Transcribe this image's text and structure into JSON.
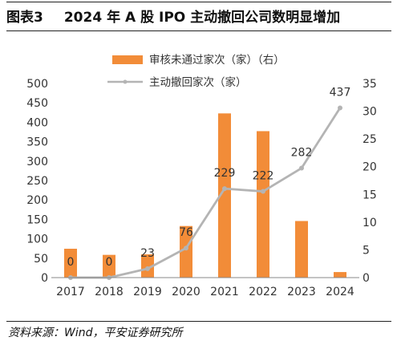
{
  "figure_label": "图表3",
  "title": "2024 年 A 股 IPO 主动撤回公司数明显增加",
  "source": "资料来源：Wind，平安证券研究所",
  "colors": {
    "bar": "#F28C38",
    "line": "#B4B4B4",
    "text": "#333333"
  },
  "chart_data": {
    "type": "bar+line",
    "categories": [
      "2017",
      "2018",
      "2019",
      "2020",
      "2021",
      "2022",
      "2023",
      "2024"
    ],
    "series": [
      {
        "name": "审核未通过家次（家）（右）",
        "type": "bar",
        "axis": "right",
        "values": [
          5.2,
          4.1,
          4.2,
          9.3,
          29.6,
          26.4,
          10.2,
          1.0
        ]
      },
      {
        "name": "主动撤回家次（家）",
        "type": "line",
        "axis": "left",
        "values": [
          0,
          0,
          23,
          76,
          229,
          222,
          282,
          437
        ],
        "labels": [
          "0",
          "0",
          "23",
          "76",
          "229",
          "222",
          "282",
          "437"
        ]
      }
    ],
    "y_left": {
      "min": 0,
      "max": 500,
      "ticks": [
        "0",
        "50",
        "100",
        "150",
        "200",
        "250",
        "300",
        "350",
        "400",
        "450",
        "500"
      ]
    },
    "y_right": {
      "min": 0,
      "max": 35,
      "ticks": [
        "0",
        "5",
        "10",
        "15",
        "20",
        "25",
        "30",
        "35"
      ]
    },
    "legend_position": "top",
    "grid": false
  }
}
